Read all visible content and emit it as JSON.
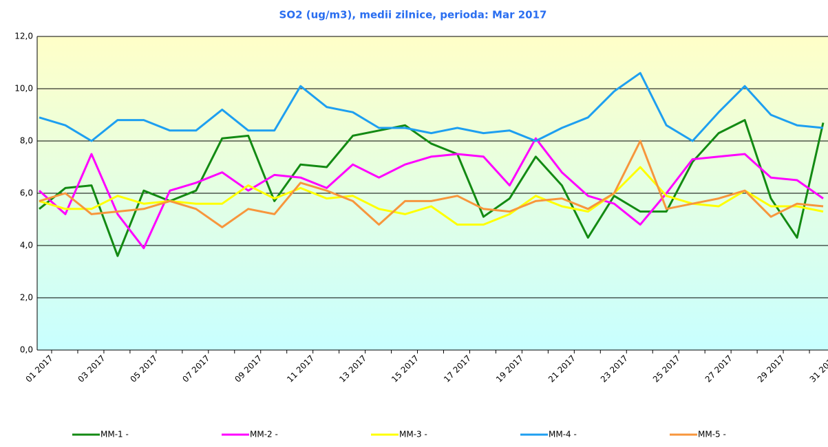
{
  "chart_data": {
    "type": "line",
    "title": "SO2 (ug/m3), medii zilnice, perioda:  Mar 2017",
    "categories": [
      "01 2017",
      null,
      "03 2017",
      null,
      "05 2017",
      null,
      "07 2017",
      null,
      "09 2017",
      null,
      "11 2017",
      null,
      "13 2017",
      null,
      "15 2017",
      null,
      "17 2017",
      null,
      "19 2017",
      null,
      "21 2017",
      null,
      "23 2017",
      null,
      "25 2017",
      null,
      "27 2017",
      null,
      "29 2017",
      null,
      "31 2017"
    ],
    "series": [
      {
        "name": "MM-1 -",
        "color": "#138a13",
        "values": [
          5.4,
          6.2,
          6.3,
          3.6,
          6.1,
          5.7,
          6.1,
          8.1,
          8.2,
          5.7,
          7.1,
          7.0,
          8.2,
          8.4,
          8.6,
          7.9,
          7.5,
          5.1,
          5.8,
          7.4,
          6.3,
          4.3,
          5.9,
          5.3,
          5.3,
          7.2,
          8.3,
          8.8,
          5.8,
          4.3,
          8.7
        ]
      },
      {
        "name": "MM-2 -",
        "color": "#ff00ff",
        "values": [
          6.1,
          5.2,
          7.5,
          5.2,
          3.9,
          6.1,
          6.4,
          6.8,
          6.1,
          6.7,
          6.6,
          6.2,
          7.1,
          6.6,
          7.1,
          7.4,
          7.5,
          7.4,
          6.3,
          8.1,
          6.8,
          5.9,
          5.6,
          4.8,
          6.0,
          7.3,
          7.4,
          7.5,
          6.6,
          6.5,
          5.8
        ]
      },
      {
        "name": "MM-3 -",
        "color": "#ffff00",
        "values": [
          5.7,
          5.4,
          5.4,
          5.9,
          5.6,
          5.7,
          5.6,
          5.6,
          6.3,
          5.8,
          6.2,
          5.8,
          5.9,
          5.4,
          5.2,
          5.5,
          4.8,
          4.8,
          5.2,
          5.9,
          5.5,
          5.3,
          6.0,
          7.0,
          5.9,
          5.6,
          5.5,
          6.1,
          5.5,
          5.5,
          5.3
        ]
      },
      {
        "name": "MM-4 -",
        "color": "#1e9ff0",
        "values": [
          8.9,
          8.6,
          8.0,
          8.8,
          8.8,
          8.4,
          8.4,
          9.2,
          8.4,
          8.4,
          10.1,
          9.3,
          9.1,
          8.5,
          8.5,
          8.3,
          8.5,
          8.3,
          8.4,
          8.0,
          8.5,
          8.9,
          9.9,
          10.6,
          8.6,
          8.0,
          9.1,
          10.1,
          9.0,
          8.6,
          8.5
        ]
      },
      {
        "name": "MM-5 -",
        "color": "#f7963c",
        "values": [
          5.7,
          6.0,
          5.2,
          5.3,
          5.4,
          5.7,
          5.4,
          4.7,
          5.4,
          5.2,
          6.4,
          6.1,
          5.7,
          4.8,
          5.7,
          5.7,
          5.9,
          5.4,
          5.3,
          5.7,
          5.8,
          5.4,
          6.0,
          8.0,
          5.4,
          5.6,
          5.8,
          6.1,
          5.1,
          5.6,
          5.5
        ]
      }
    ],
    "ylim": [
      0,
      12
    ],
    "yticks": [
      {
        "value": 0,
        "label": "0,0"
      },
      {
        "value": 2,
        "label": "2,0"
      },
      {
        "value": 4,
        "label": "4,0"
      },
      {
        "value": 6,
        "label": "6,0"
      },
      {
        "value": 8,
        "label": "8,0"
      },
      {
        "value": 10,
        "label": "10,0"
      },
      {
        "value": 12,
        "label": "12,0"
      }
    ],
    "grid": true
  }
}
